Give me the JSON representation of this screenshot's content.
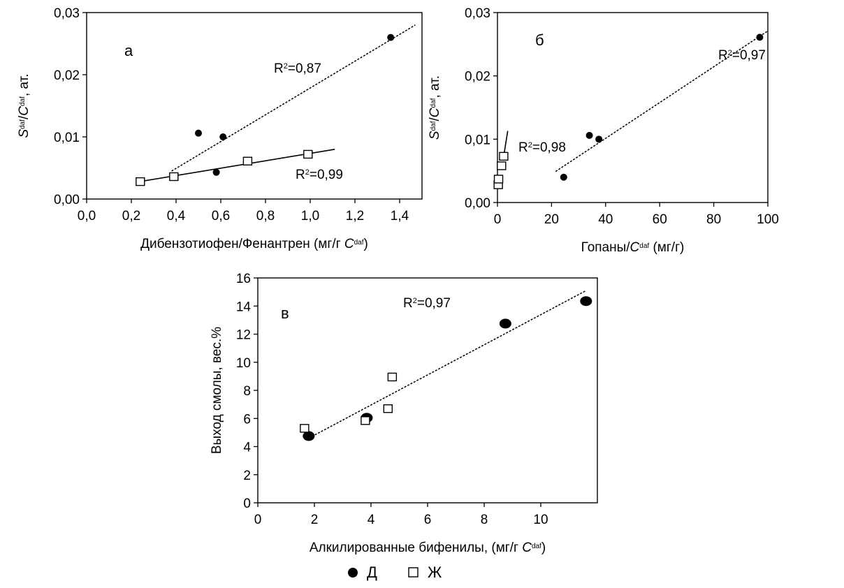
{
  "legend": {
    "items": [
      {
        "marker": "filled-circle",
        "label": "Д"
      },
      {
        "marker": "open-square",
        "label": "Ж"
      }
    ]
  },
  "chart_data": [
    {
      "type": "scatter",
      "panel_label": "а",
      "xlabel": "Дибензотиофен/Фенантрен (мг/г ",
      "xlabel_var": "C",
      "xlabel_sup": "daf",
      "xlabel_end": ")",
      "ylabel": "S",
      "ylabel_sup": "daf",
      "ylabel_mid": "/",
      "ylabel_var": "C",
      "ylabel_sup2": "daf",
      "ylabel_end": ", ат.",
      "xlim": [
        0.0,
        1.5
      ],
      "ylim": [
        0.0,
        0.03
      ],
      "xticks": [
        "0,0",
        "0,2",
        "0,4",
        "0,6",
        "0,8",
        "1,0",
        "1,2",
        "1,4"
      ],
      "xtick_values": [
        0.0,
        0.2,
        0.4,
        0.6,
        0.8,
        1.0,
        1.2,
        1.4
      ],
      "yticks": [
        "0,00",
        "0,01",
        "0,02",
        "0,03"
      ],
      "ytick_values": [
        0.0,
        0.01,
        0.02,
        0.03
      ],
      "series": [
        {
          "name": "Д",
          "marker": "filled-circle",
          "x": [
            0.5,
            0.61,
            0.58,
            1.36
          ],
          "y": [
            0.0106,
            0.01,
            0.0043,
            0.026
          ],
          "trend": {
            "style": "dotted",
            "x": [
              0.38,
              1.47
            ],
            "y": [
              0.0045,
              0.028
            ],
            "label": "R",
            "label_sup": "2",
            "label_end": "=0,87"
          }
        },
        {
          "name": "Ж",
          "marker": "open-square",
          "x": [
            0.24,
            0.39,
            0.72,
            0.99
          ],
          "y": [
            0.0028,
            0.0036,
            0.0061,
            0.0072
          ],
          "trend": {
            "style": "solid",
            "x": [
              0.22,
              1.11
            ],
            "y": [
              0.0027,
              0.008
            ],
            "label": "R",
            "label_sup": "2",
            "label_end": "=0,99"
          }
        }
      ]
    },
    {
      "type": "scatter",
      "panel_label": "б",
      "xlabel": "Гопаны/",
      "xlabel_var": "C",
      "xlabel_sup": "daf",
      "xlabel_end": " (мг/г)",
      "ylabel": "S",
      "ylabel_sup": "daf",
      "ylabel_mid": "/",
      "ylabel_var": "C",
      "ylabel_sup2": "daf",
      "ylabel_end": ", ат.",
      "xlim": [
        0,
        100
      ],
      "ylim": [
        0.0,
        0.03
      ],
      "xticks": [
        "0",
        "20",
        "40",
        "60",
        "80",
        "100"
      ],
      "xtick_values": [
        0,
        20,
        40,
        60,
        80,
        100
      ],
      "yticks": [
        "0,00",
        "0,01",
        "0,02",
        "0,03"
      ],
      "ytick_values": [
        0.0,
        0.01,
        0.02,
        0.03
      ],
      "series": [
        {
          "name": "Д",
          "marker": "filled-circle",
          "x": [
            24.5,
            34.0,
            37.5,
            97.0
          ],
          "y": [
            0.004,
            0.0106,
            0.01,
            0.0261
          ],
          "trend": {
            "style": "dotted",
            "x": [
              21.5,
              100
            ],
            "y": [
              0.0049,
              0.0271
            ],
            "label": "R",
            "label_sup": "2",
            "label_end": "=0,97"
          }
        },
        {
          "name": "Ж",
          "marker": "open-square",
          "x": [
            0.3,
            0.4,
            1.5,
            2.3
          ],
          "y": [
            0.0028,
            0.0037,
            0.0058,
            0.0073
          ],
          "trend": {
            "style": "solid",
            "x": [
              2.3,
              3.8
            ],
            "y": [
              0.0073,
              0.0113
            ],
            "label": "R",
            "label_sup": "2",
            "label_end": "=0,98"
          }
        }
      ]
    },
    {
      "type": "scatter",
      "panel_label": "в",
      "xlabel": "Алкилированные бифенилы, (мг/г ",
      "xlabel_var": "C",
      "xlabel_sup": "daf",
      "xlabel_end": ")",
      "ylabel": "Выход смолы, вес.%",
      "xlim": [
        0,
        12
      ],
      "ylim": [
        0,
        16
      ],
      "xticks": [
        "0",
        "2",
        "4",
        "6",
        "8",
        "10"
      ],
      "xtick_values": [
        0,
        2,
        4,
        6,
        8,
        10
      ],
      "yticks": [
        "0",
        "2",
        "4",
        "6",
        "8",
        "10",
        "12",
        "14",
        "16"
      ],
      "ytick_values": [
        0,
        2,
        4,
        6,
        8,
        10,
        12,
        14,
        16
      ],
      "series": [
        {
          "name": "Д",
          "marker": "filled-circle-large",
          "x": [
            1.8,
            3.85,
            8.75,
            11.6
          ],
          "y": [
            4.75,
            6.05,
            12.75,
            14.35
          ]
        },
        {
          "name": "Ж",
          "marker": "open-square",
          "x": [
            1.65,
            3.8,
            4.6,
            4.75
          ],
          "y": [
            5.3,
            5.85,
            6.7,
            8.95
          ]
        }
      ],
      "trend": {
        "style": "dotted",
        "x": [
          1.8,
          11.6
        ],
        "y": [
          4.6,
          15.1
        ],
        "label": "R",
        "label_sup": "2",
        "label_end": "=0,97"
      }
    }
  ]
}
